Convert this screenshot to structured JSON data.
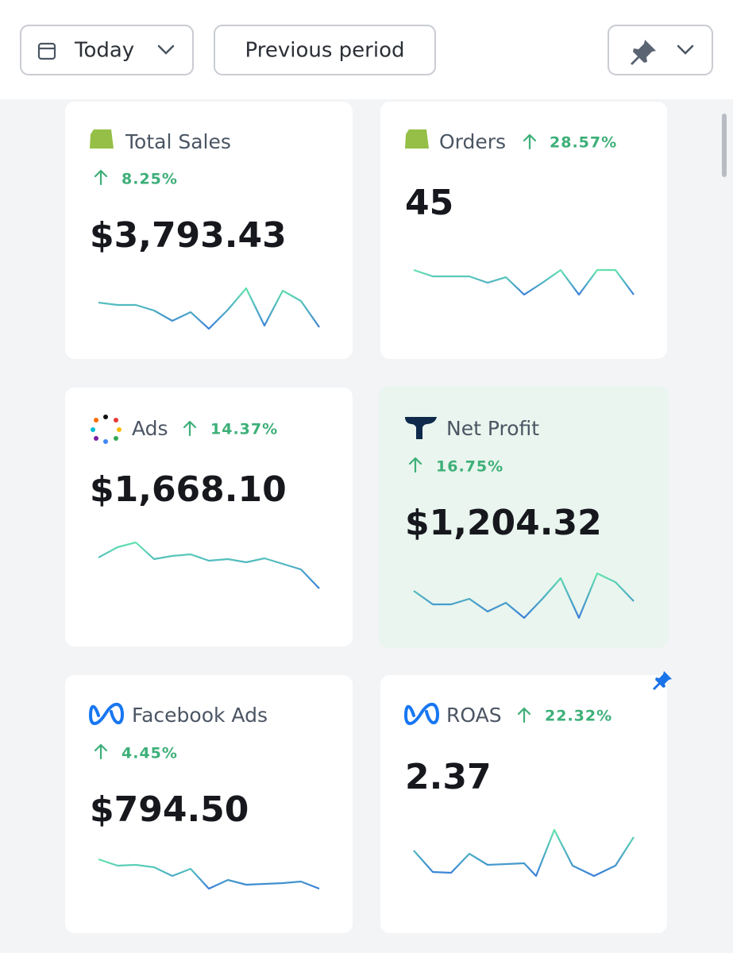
{
  "header": {
    "date_button": "Today",
    "compare_button": "Previous period"
  },
  "cards": [
    {
      "title": "Total Sales",
      "change": "8.25%",
      "value": "$3,793.43"
    },
    {
      "title": "Orders",
      "change": "28.57%",
      "value": "45"
    },
    {
      "title": "Ads",
      "change": "14.37%",
      "value": "$1,668.10"
    },
    {
      "title": "Net Profit",
      "change": "16.75%",
      "value": "$1,204.32"
    },
    {
      "title": "Facebook Ads",
      "change": "4.45%",
      "value": "$794.50"
    },
    {
      "title": "ROAS",
      "change": "22.32%",
      "value": "2.37"
    }
  ]
}
